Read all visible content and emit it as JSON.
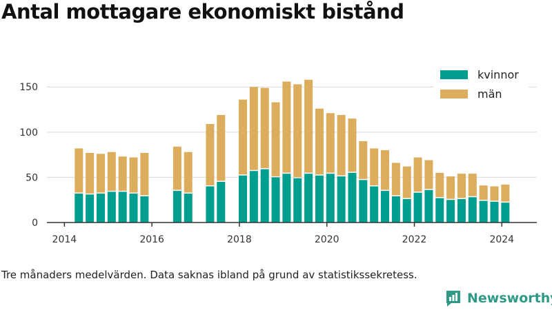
{
  "title": "Antal mottagare ekonomiskt bistånd",
  "note": "Tre månaders medelvärden. Data saknas ibland på grund av statistikssekretess.",
  "brand": {
    "name": "Newsworthy"
  },
  "colors": {
    "kvinnor": "#009e8f",
    "man": "#dbad5c",
    "grid": "#d9d9d9",
    "axis": "#333333",
    "brand": "#2e9a86"
  },
  "chart_data": {
    "type": "bar",
    "stacked": true,
    "title": "Antal mottagare ekonomiskt bistånd",
    "x_ticks": [
      "2014",
      "2016",
      "2018",
      "2020",
      "2022",
      "2024"
    ],
    "y_ticks": [
      0,
      50,
      100,
      150
    ],
    "ylim": [
      0,
      170
    ],
    "xlim": [
      2013.6,
      2024.8
    ],
    "grid": true,
    "legend_position": "top-right",
    "series": [
      {
        "name": "kvinnor",
        "color": "#009e8f",
        "x": [
          2014.33,
          2014.58,
          2014.83,
          2015.08,
          2015.33,
          2015.58,
          2015.83,
          2016.58,
          2016.83,
          2017.33,
          2017.58,
          2018.08,
          2018.33,
          2018.58,
          2018.83,
          2019.08,
          2019.33,
          2019.58,
          2019.83,
          2020.08,
          2020.33,
          2020.58,
          2020.83,
          2021.08,
          2021.33,
          2021.58,
          2021.83,
          2022.08,
          2022.33,
          2022.58,
          2022.83,
          2023.08,
          2023.33,
          2023.58,
          2023.83,
          2024.08
        ],
        "values": [
          32,
          31,
          32,
          34,
          34,
          32,
          29,
          35,
          32,
          40,
          45,
          52,
          57,
          59,
          50,
          54,
          49,
          54,
          52,
          54,
          51,
          55,
          47,
          40,
          35,
          29,
          26,
          33,
          36,
          27,
          25,
          26,
          28,
          24,
          23,
          22
        ]
      },
      {
        "name": "män",
        "color": "#dbad5c",
        "x": [
          2014.33,
          2014.58,
          2014.83,
          2015.08,
          2015.33,
          2015.58,
          2015.83,
          2016.58,
          2016.83,
          2017.33,
          2017.58,
          2018.08,
          2018.33,
          2018.58,
          2018.83,
          2019.08,
          2019.33,
          2019.58,
          2019.83,
          2020.08,
          2020.33,
          2020.58,
          2020.83,
          2021.08,
          2021.33,
          2021.58,
          2021.83,
          2022.08,
          2022.33,
          2022.58,
          2022.83,
          2023.08,
          2023.33,
          2023.58,
          2023.83,
          2024.08
        ],
        "values": [
          50,
          46,
          44,
          44,
          39,
          40,
          48,
          49,
          46,
          69,
          74,
          84,
          93,
          90,
          83,
          102,
          104,
          104,
          74,
          67,
          68,
          60,
          43,
          42,
          45,
          37,
          36,
          39,
          33,
          28,
          26,
          28,
          26,
          17,
          17,
          20
        ]
      }
    ]
  }
}
